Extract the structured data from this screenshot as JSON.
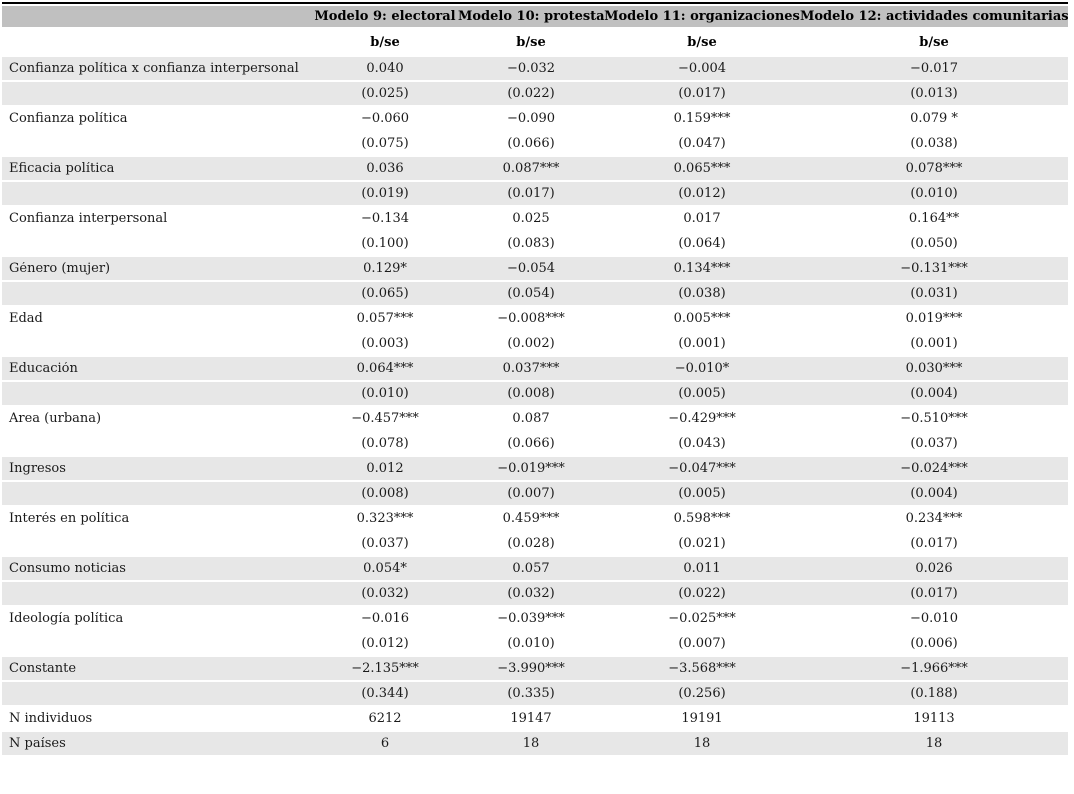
{
  "table": {
    "model_headers": [
      "Modelo 9: electoral",
      "Modelo 10: protesta",
      "Modelo 11: organizaciones",
      "Modelo 12: actividades comunitarias"
    ],
    "subheaders": [
      "b/se",
      "b/se",
      "b/se",
      "b/se"
    ],
    "rows": [
      {
        "label": "Confianza política x confianza interpersonal",
        "cells": [
          "0.040",
          "−0.032",
          "−0.004",
          "−0.017"
        ],
        "shaded": true
      },
      {
        "label": "",
        "cells": [
          "(0.025)",
          "(0.022)",
          "(0.017)",
          "(0.013)"
        ],
        "shaded": true
      },
      {
        "label": "Confianza política",
        "cells": [
          "−0.060",
          "−0.090",
          "0.159***",
          "0.079 *"
        ],
        "shaded": false
      },
      {
        "label": "",
        "cells": [
          "(0.075)",
          "(0.066)",
          "(0.047)",
          "(0.038)"
        ],
        "shaded": false
      },
      {
        "label": "Eficacia política",
        "cells": [
          "0.036",
          "0.087***",
          "0.065***",
          "0.078***"
        ],
        "shaded": true
      },
      {
        "label": "",
        "cells": [
          "(0.019)",
          "(0.017)",
          "(0.012)",
          "(0.010)"
        ],
        "shaded": true
      },
      {
        "label": "Confianza interpersonal",
        "cells": [
          "−0.134",
          "0.025",
          "0.017",
          "0.164**"
        ],
        "shaded": false
      },
      {
        "label": "",
        "cells": [
          "(0.100)",
          "(0.083)",
          "(0.064)",
          "(0.050)"
        ],
        "shaded": false
      },
      {
        "label": "Género (mujer)",
        "cells": [
          "0.129*",
          "−0.054",
          "0.134***",
          "−0.131***"
        ],
        "shaded": true
      },
      {
        "label": "",
        "cells": [
          "(0.065)",
          "(0.054)",
          "(0.038)",
          "(0.031)"
        ],
        "shaded": true
      },
      {
        "label": "Edad",
        "cells": [
          "0.057***",
          "−0.008***",
          "0.005***",
          "0.019***"
        ],
        "shaded": false
      },
      {
        "label": "",
        "cells": [
          "(0.003)",
          "(0.002)",
          "(0.001)",
          "(0.001)"
        ],
        "shaded": false
      },
      {
        "label": "Educación",
        "cells": [
          "0.064***",
          "0.037***",
          "−0.010*",
          "0.030***"
        ],
        "shaded": true
      },
      {
        "label": "",
        "cells": [
          "(0.010)",
          "(0.008)",
          "(0.005)",
          "(0.004)"
        ],
        "shaded": true
      },
      {
        "label": "Área (urbana)",
        "cells": [
          "−0.457***",
          "0.087",
          "−0.429***",
          "−0.510***"
        ],
        "shaded": false
      },
      {
        "label": "",
        "cells": [
          "(0.078)",
          "(0.066)",
          "(0.043)",
          "(0.037)"
        ],
        "shaded": false
      },
      {
        "label": "Ingresos",
        "cells": [
          "0.012",
          "−0.019***",
          "−0.047***",
          "−0.024***"
        ],
        "shaded": true
      },
      {
        "label": "",
        "cells": [
          "(0.008)",
          "(0.007)",
          "(0.005)",
          "(0.004)"
        ],
        "shaded": true
      },
      {
        "label": "Interés en política",
        "cells": [
          "0.323***",
          "0.459***",
          "0.598***",
          "0.234***"
        ],
        "shaded": false
      },
      {
        "label": "",
        "cells": [
          "(0.037)",
          "(0.028)",
          "(0.021)",
          "(0.017)"
        ],
        "shaded": false
      },
      {
        "label": "Consumo noticias",
        "cells": [
          "0.054*",
          "0.057",
          "0.011",
          "0.026"
        ],
        "shaded": true
      },
      {
        "label": "",
        "cells": [
          "(0.032)",
          "(0.032)",
          "(0.022)",
          "(0.017)"
        ],
        "shaded": true
      },
      {
        "label": "Ideología política",
        "cells": [
          "−0.016",
          "−0.039***",
          "−0.025***",
          "−0.010"
        ],
        "shaded": false
      },
      {
        "label": "",
        "cells": [
          "(0.012)",
          "(0.010)",
          "(0.007)",
          "(0.006)"
        ],
        "shaded": false
      },
      {
        "label": "Constante",
        "cells": [
          "−2.135***",
          "−3.990***",
          "−3.568***",
          "−1.966***"
        ],
        "shaded": true
      },
      {
        "label": "",
        "cells": [
          "(0.344)",
          "(0.335)",
          "(0.256)",
          "(0.188)"
        ],
        "shaded": true
      },
      {
        "label": "N individuos",
        "cells": [
          "6212",
          "19147",
          "19191",
          "19113"
        ],
        "shaded": false
      },
      {
        "label": "N países",
        "cells": [
          "6",
          "18",
          "18",
          "18"
        ],
        "shaded": true
      }
    ],
    "colors": {
      "header_bg": "#c0c0c0",
      "stripe_bg": "#e7e7e7",
      "top_border": "#000000",
      "text": "#1a1a1a"
    }
  }
}
